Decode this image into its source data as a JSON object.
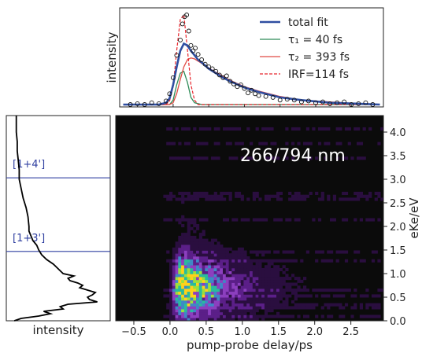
{
  "chart_data": [
    {
      "panel": "top",
      "type": "line",
      "ylabel": "intensity",
      "xlim": [
        -0.75,
        2.95
      ],
      "colors": {
        "total": "#2f4ea1",
        "tau1": "#2e8b57",
        "tau2": "#e04b45",
        "irf": "#e8262d",
        "data": "#111111"
      },
      "legend": {
        "placement": "top-right",
        "entries": [
          {
            "key": "total",
            "label": "total fit",
            "style": "solid-thick"
          },
          {
            "key": "tau1",
            "label": "τ₁ =  40 fs",
            "style": "solid"
          },
          {
            "key": "tau2",
            "label": "τ₂ =  393 fs",
            "style": "solid"
          },
          {
            "key": "irf",
            "label": "IRF=114 fs",
            "style": "dashed"
          }
        ]
      },
      "series": [
        {
          "key": "data",
          "type": "scatter",
          "x": [
            -0.6,
            -0.5,
            -0.4,
            -0.3,
            -0.2,
            -0.1,
            -0.05,
            0.0,
            0.05,
            0.1,
            0.13,
            0.16,
            0.19,
            0.22,
            0.25,
            0.28,
            0.31,
            0.35,
            0.4,
            0.45,
            0.5,
            0.55,
            0.6,
            0.65,
            0.7,
            0.75,
            0.8,
            0.85,
            0.9,
            0.95,
            1.0,
            1.05,
            1.1,
            1.15,
            1.2,
            1.3,
            1.4,
            1.5,
            1.6,
            1.7,
            1.8,
            1.9,
            2.0,
            2.1,
            2.2,
            2.3,
            2.4,
            2.5,
            2.6,
            2.7,
            2.8
          ],
          "y": [
            0.0,
            0.01,
            0.0,
            0.02,
            0.01,
            0.04,
            0.12,
            0.3,
            0.55,
            0.72,
            0.9,
            0.98,
            1.0,
            0.82,
            0.66,
            0.6,
            0.63,
            0.56,
            0.5,
            0.45,
            0.42,
            0.4,
            0.37,
            0.33,
            0.3,
            0.32,
            0.26,
            0.23,
            0.2,
            0.22,
            0.18,
            0.13,
            0.16,
            0.12,
            0.1,
            0.09,
            0.08,
            0.05,
            0.06,
            0.05,
            0.03,
            0.04,
            0.02,
            0.03,
            0.01,
            0.02,
            0.03,
            0.0,
            0.01,
            0.02,
            0.0
          ]
        },
        {
          "key": "total",
          "type": "line",
          "x": [
            -0.7,
            -0.2,
            -0.1,
            -0.05,
            0.0,
            0.05,
            0.1,
            0.15,
            0.2,
            0.25,
            0.3,
            0.35,
            0.4,
            0.5,
            0.6,
            0.7,
            0.8,
            1.0,
            1.2,
            1.5,
            1.8,
            2.2,
            2.6,
            2.9
          ],
          "y": [
            0.0,
            0.0,
            0.02,
            0.07,
            0.22,
            0.42,
            0.6,
            0.68,
            0.66,
            0.6,
            0.55,
            0.5,
            0.47,
            0.4,
            0.35,
            0.3,
            0.26,
            0.19,
            0.14,
            0.08,
            0.05,
            0.02,
            0.01,
            0.0
          ]
        },
        {
          "key": "tau1",
          "type": "line",
          "x": [
            -0.7,
            -0.05,
            0.0,
            0.05,
            0.1,
            0.15,
            0.2,
            0.25,
            0.3,
            0.4,
            2.9
          ],
          "y": [
            0.0,
            0.0,
            0.05,
            0.22,
            0.35,
            0.37,
            0.25,
            0.08,
            0.02,
            0.0,
            0.0
          ]
        },
        {
          "key": "tau2",
          "type": "line",
          "x": [
            -0.7,
            -0.05,
            0.0,
            0.05,
            0.1,
            0.15,
            0.2,
            0.25,
            0.3,
            0.4,
            0.5,
            0.6,
            0.8,
            1.0,
            1.2,
            1.5,
            1.8,
            2.2,
            2.6,
            2.9
          ],
          "y": [
            0.0,
            0.0,
            0.02,
            0.12,
            0.28,
            0.42,
            0.5,
            0.52,
            0.51,
            0.46,
            0.41,
            0.36,
            0.27,
            0.2,
            0.15,
            0.09,
            0.05,
            0.03,
            0.01,
            0.0
          ]
        },
        {
          "key": "irf",
          "type": "line",
          "x": [
            -0.7,
            -0.1,
            -0.05,
            0.0,
            0.05,
            0.1,
            0.15,
            0.2,
            0.25,
            0.3,
            0.35,
            2.9
          ],
          "y": [
            0.0,
            0.0,
            0.04,
            0.2,
            0.6,
            0.95,
            1.0,
            0.62,
            0.22,
            0.05,
            0.0,
            0.0
          ]
        }
      ]
    },
    {
      "panel": "main",
      "type": "heatmap",
      "annotation": "266/794 nm",
      "xlabel": "pump-probe delay/ps",
      "ylabel": "eKe/eV",
      "xlim": [
        -0.75,
        2.95
      ],
      "ylim": [
        0.0,
        4.35
      ],
      "xticks": [
        -0.5,
        0.0,
        0.5,
        1.0,
        1.5,
        2.0,
        2.5
      ],
      "xtick_labels": [
        "−0.5",
        "0.0",
        "0.5",
        "1.0",
        "1.5",
        "2.0",
        "2.5"
      ],
      "yticks": [
        0.0,
        0.5,
        1.0,
        1.5,
        2.0,
        2.5,
        3.0,
        3.5,
        4.0
      ],
      "ytick_labels": [
        "0.0",
        "0.5",
        "1.0",
        "1.5",
        "2.0",
        "2.5",
        "3.0",
        "3.5",
        "4.0"
      ],
      "colormap": [
        "#0b0b0b",
        "#2a0e3f",
        "#5b1f88",
        "#8c3fbf",
        "#3f88c5",
        "#29bb9c",
        "#9be03c",
        "#ffd11a"
      ],
      "hotspot": {
        "x": 0.18,
        "y": 0.75
      }
    },
    {
      "panel": "left",
      "type": "line",
      "xlabel": "intensity",
      "ylim": [
        0.0,
        4.35
      ],
      "line_color": "#2f3fa0",
      "hlines": [
        {
          "y": 3.03,
          "label": "[1+4']"
        },
        {
          "y": 1.47,
          "label": "[1+3']"
        }
      ],
      "series": [
        {
          "name": "",
          "y": [
            0.0,
            0.05,
            0.1,
            0.15,
            0.2,
            0.25,
            0.3,
            0.35,
            0.4,
            0.45,
            0.5,
            0.55,
            0.6,
            0.65,
            0.7,
            0.75,
            0.8,
            0.85,
            0.9,
            0.95,
            1.0,
            1.1,
            1.2,
            1.3,
            1.4,
            1.5,
            1.6,
            1.7,
            1.8,
            1.9,
            2.0,
            2.2,
            2.4,
            2.6,
            2.8,
            3.0,
            3.2,
            3.4,
            3.6,
            3.8,
            4.0,
            4.2,
            4.35
          ],
          "x": [
            0.05,
            0.12,
            0.3,
            0.42,
            0.35,
            0.55,
            0.52,
            0.6,
            0.9,
            0.82,
            0.8,
            0.85,
            0.88,
            0.8,
            0.72,
            0.75,
            0.7,
            0.62,
            0.6,
            0.66,
            0.55,
            0.5,
            0.45,
            0.38,
            0.33,
            0.3,
            0.28,
            0.24,
            0.22,
            0.2,
            0.2,
            0.19,
            0.17,
            0.14,
            0.12,
            0.1,
            0.1,
            0.09,
            0.08,
            0.08,
            0.07,
            0.07,
            0.07
          ]
        }
      ]
    }
  ]
}
